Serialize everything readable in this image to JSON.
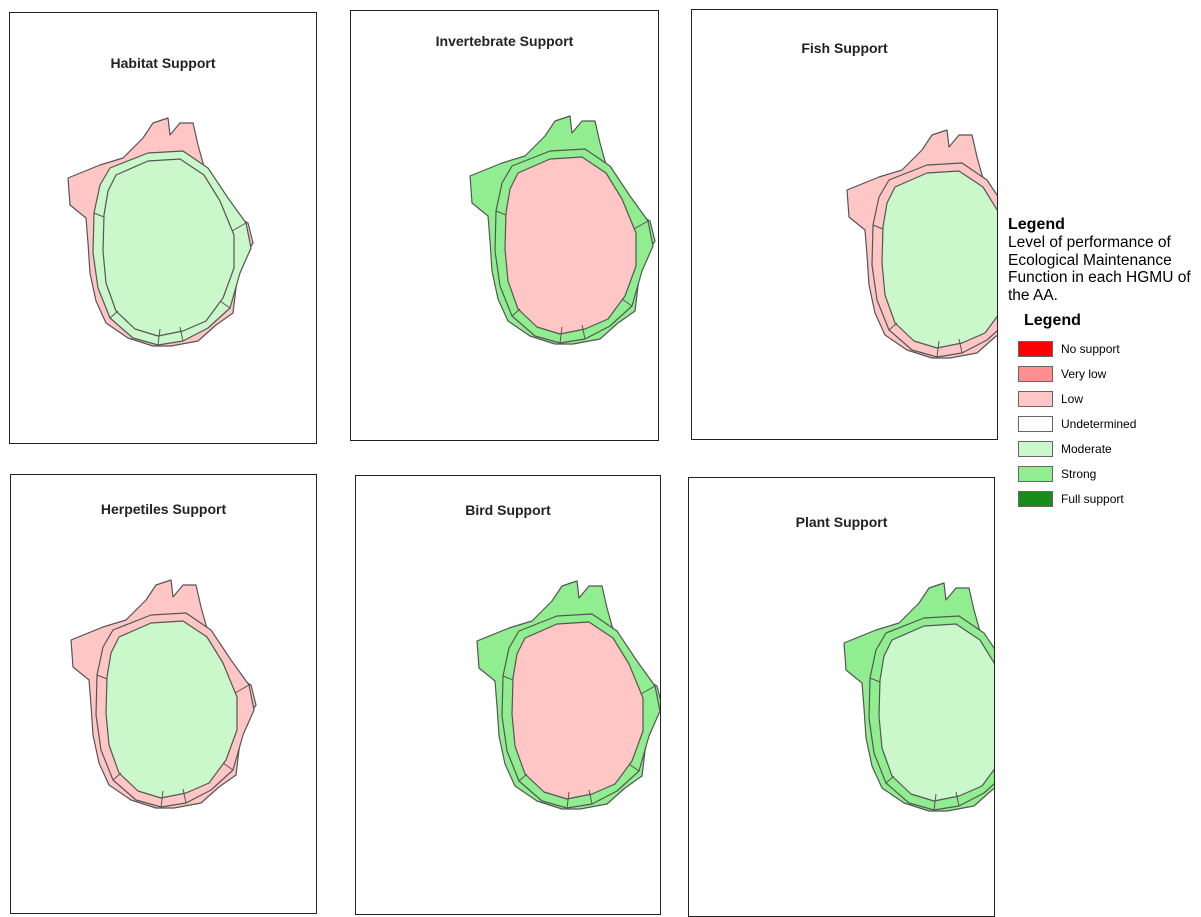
{
  "colors": {
    "none": "#ff0000",
    "very_low": "#ff8f8f",
    "low": "#ffc6c6",
    "undetermined": "#ffffff",
    "moderate": "#caf8ca",
    "strong": "#90ee90",
    "full": "#1a8c1a",
    "outline": "#555555"
  },
  "maps": [
    {
      "title": "Habitat Support",
      "outer": "low",
      "ring": "moderate",
      "core": "moderate"
    },
    {
      "title": "Invertebrate Support",
      "outer": "strong",
      "ring": "strong",
      "core": "low"
    },
    {
      "title": "Fish Support",
      "outer": "low",
      "ring": "low",
      "core": "moderate"
    },
    {
      "title": "Herpetiles Support",
      "outer": "low",
      "ring": "low",
      "core": "moderate"
    },
    {
      "title": "Bird Support",
      "outer": "strong",
      "ring": "strong",
      "core": "low"
    },
    {
      "title": "Plant Support",
      "outer": "strong",
      "ring": "strong",
      "core": "moderate"
    }
  ],
  "legend": {
    "heading": "Legend",
    "description": "Level of performance of Ecological Maintenance Function in each HGMU of the AA.",
    "subheading": "Legend",
    "items": [
      {
        "label": "No support",
        "color": "#ff0000"
      },
      {
        "label": "Very low",
        "color": "#ff8f8f"
      },
      {
        "label": "Low",
        "color": "#ffc6c6"
      },
      {
        "label": "Undetermined",
        "color": "#ffffff"
      },
      {
        "label": "Moderate",
        "color": "#caf8ca"
      },
      {
        "label": "Strong",
        "color": "#90ee90"
      },
      {
        "label": "Full support",
        "color": "#1a8c1a"
      }
    ]
  }
}
